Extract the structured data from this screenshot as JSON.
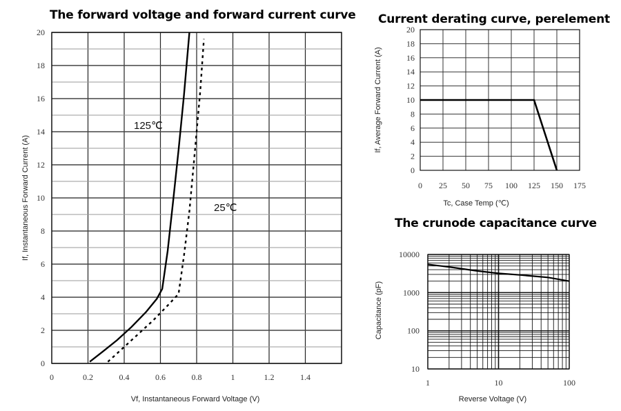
{
  "chart_data": [
    {
      "type": "line",
      "title": "The forward voltage and forward current curve",
      "xlabel": "Vf, Instantaneous Forward Voltage (V)",
      "ylabel": "If, Instantaneous Forward Current (A)",
      "xlim": [
        0,
        1.6
      ],
      "ylim": [
        0,
        20
      ],
      "xticks": [
        "0",
        "0.2",
        "0.4",
        "0.6",
        "0.8",
        "1",
        "1.2",
        "1.4"
      ],
      "yticks": [
        "0",
        "2",
        "4",
        "6",
        "8",
        "10",
        "12",
        "14",
        "16",
        "18",
        "20"
      ],
      "grid": true,
      "series": [
        {
          "name": "125℃",
          "style": "solid",
          "x": [
            0.21,
            0.28,
            0.36,
            0.44,
            0.52,
            0.58,
            0.61,
            0.64,
            0.67,
            0.7,
            0.73,
            0.76
          ],
          "y": [
            0.1,
            0.7,
            1.4,
            2.2,
            3.1,
            3.9,
            4.5,
            6.8,
            9.8,
            12.9,
            16.2,
            20
          ]
        },
        {
          "name": "25℃",
          "style": "dashed",
          "x": [
            0.31,
            0.38,
            0.47,
            0.56,
            0.64,
            0.7,
            0.73,
            0.76,
            0.79,
            0.82,
            0.84
          ],
          "y": [
            0.1,
            0.8,
            1.7,
            2.6,
            3.5,
            4.2,
            6.5,
            9.2,
            12.8,
            16.5,
            19.6
          ]
        }
      ],
      "annotations": [
        "125℃",
        "25℃"
      ]
    },
    {
      "type": "line",
      "title": "Current derating curve, perelement",
      "xlabel": "Tc, Case Temp (℃)",
      "ylabel": "If, Average Forward Current (A)",
      "xlim": [
        0,
        175
      ],
      "ylim": [
        0,
        20
      ],
      "xticks": [
        "0",
        "25",
        "50",
        "75",
        "100",
        "125",
        "150",
        "175"
      ],
      "yticks": [
        "0",
        "2",
        "4",
        "6",
        "8",
        "10",
        "12",
        "14",
        "16",
        "18",
        "20"
      ],
      "grid": true,
      "series": [
        {
          "x": [
            0,
            125,
            150
          ],
          "y": [
            10,
            10,
            0
          ]
        }
      ]
    },
    {
      "type": "line",
      "title": "The crunode capacitance curve",
      "xlabel": "Reverse Voltage (V)",
      "ylabel": "Capacitance (pF)",
      "xscale": "log",
      "yscale": "log",
      "xlim": [
        1,
        100
      ],
      "ylim": [
        10,
        10000
      ],
      "xticks": [
        "1",
        "10",
        "100"
      ],
      "yticks": [
        "10",
        "100",
        "1000",
        "10000"
      ],
      "grid": true,
      "series": [
        {
          "x": [
            1,
            2,
            5,
            10,
            20,
            50,
            100
          ],
          "y": [
            5500,
            4700,
            3700,
            3200,
            2900,
            2500,
            2000
          ]
        }
      ]
    }
  ]
}
